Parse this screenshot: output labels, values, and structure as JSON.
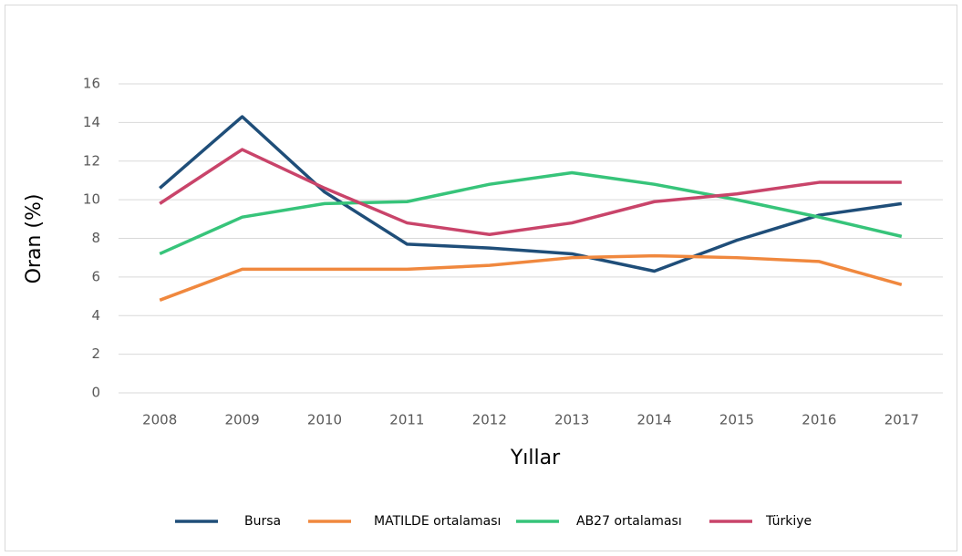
{
  "chart_data": {
    "type": "line",
    "x_label": "Yıllar",
    "y_label": "Oran (%)",
    "categories": [
      "2008",
      "2009",
      "2010",
      "2011",
      "2012",
      "2013",
      "2014",
      "2015",
      "2016",
      "2017"
    ],
    "series": [
      {
        "name": "Bursa",
        "color": "#1f4e79",
        "values": [
          10.6,
          14.3,
          10.4,
          7.7,
          7.5,
          7.2,
          6.3,
          7.9,
          9.2,
          9.8
        ]
      },
      {
        "name": "MATILDE ortalaması",
        "color": "#f0883e",
        "values": [
          4.8,
          6.4,
          6.4,
          6.4,
          6.6,
          7.0,
          7.1,
          7.0,
          6.8,
          5.6
        ]
      },
      {
        "name": "AB27 ortalaması",
        "color": "#37c47a",
        "values": [
          7.2,
          9.1,
          9.8,
          9.9,
          10.8,
          11.4,
          10.8,
          10.0,
          9.1,
          8.1
        ]
      },
      {
        "name": "Türkiye",
        "color": "#c9446a",
        "values": [
          9.8,
          12.6,
          10.6,
          8.8,
          8.2,
          8.8,
          9.9,
          10.3,
          10.9,
          10.9
        ]
      }
    ],
    "ylim": [
      0,
      16
    ],
    "yticks": [
      0,
      2,
      4,
      6,
      8,
      10,
      12,
      14,
      16
    ],
    "grid": true,
    "legend": "bottom"
  }
}
